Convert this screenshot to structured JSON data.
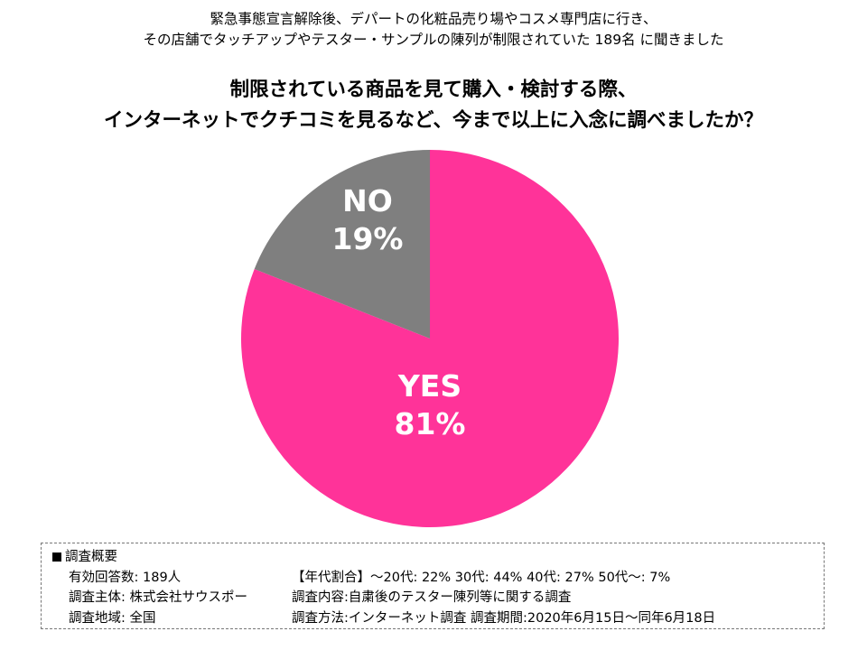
{
  "intro": {
    "line1": "緊急事態宣言解除後、デパートの化粧品売り場やコスメ専門店に行き、",
    "line2": "その店舗でタッチアップやテスター・サンプルの陳列が制限されていた 189名 に聞きました"
  },
  "question": {
    "line1": "制限されている商品を見て購入・検討する際、",
    "line2": "インターネットでクチコミを見るなど、今まで以上に入念に調べましたか？"
  },
  "chart_data": {
    "type": "pie",
    "slices": [
      {
        "label": "YES",
        "percent_label": "81%",
        "value": 81,
        "color": "#ff3399"
      },
      {
        "label": "NO",
        "percent_label": "19%",
        "value": 19,
        "color": "#7f7f7f"
      }
    ],
    "start": "12 o'clock",
    "direction": "clockwise"
  },
  "summary": {
    "title": "調査概要",
    "respondents": "有効回答数: 189人",
    "age_ratio": "【年代割合】～20代: 22%  30代: 44%  40代: 27%  50代～: 7%",
    "organizer": "調査主体: 株式会社サウスポー",
    "content": "調査内容:自粛後のテスター陳列等に関する調査",
    "region": "調査地域: 全国",
    "method": "調査方法:インターネット調査  調査期間:2020年6月15日～同年6月18日"
  }
}
